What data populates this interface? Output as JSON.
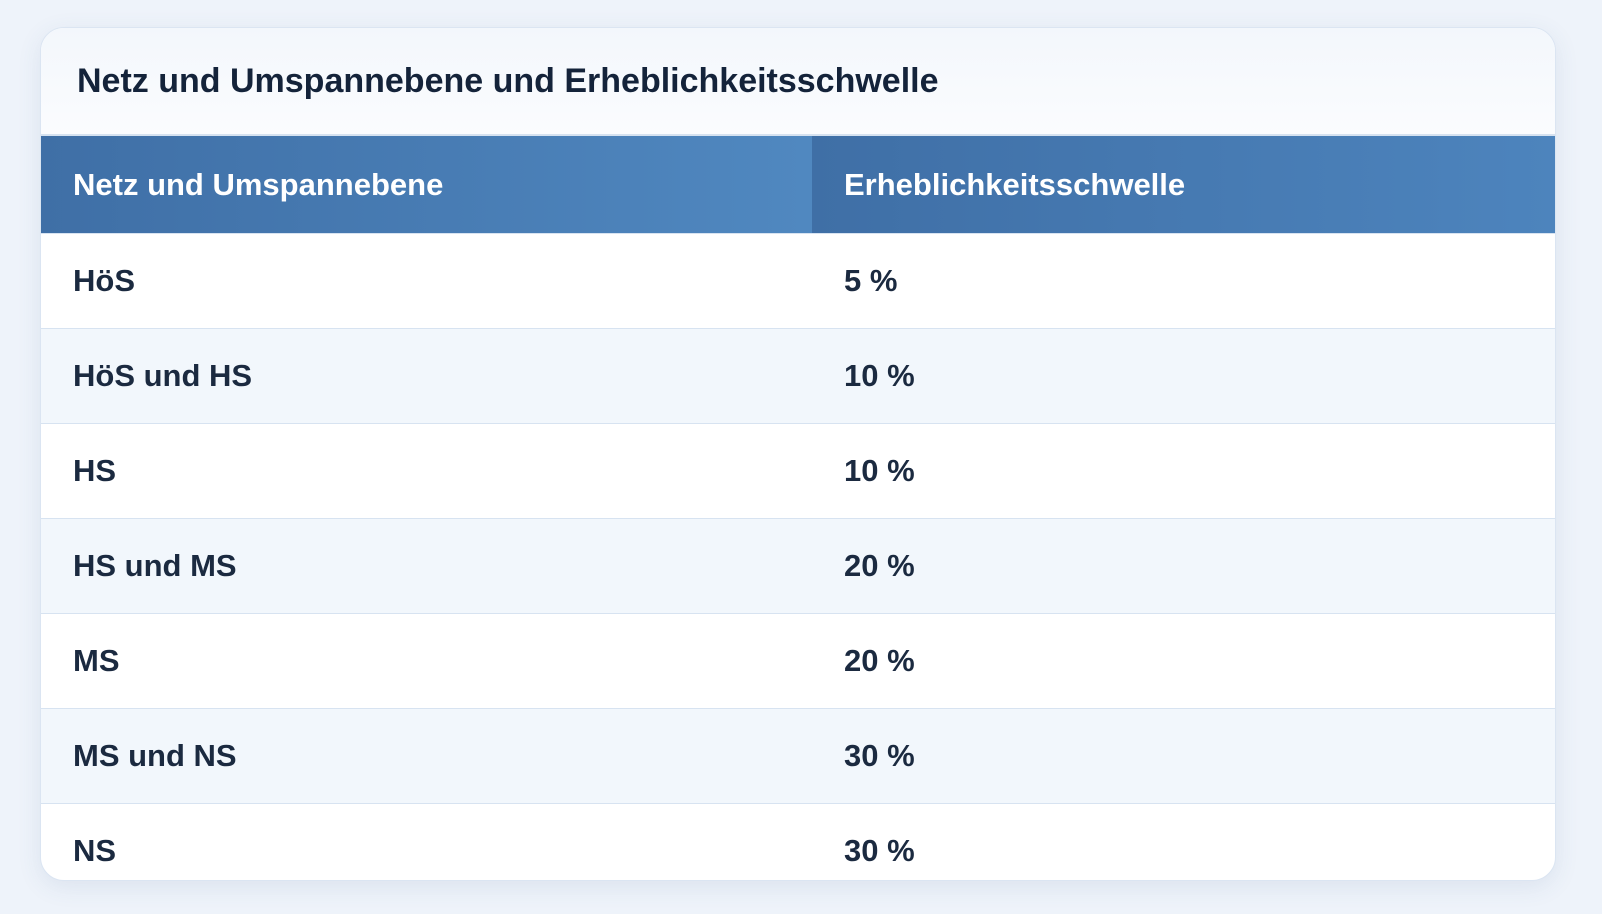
{
  "header": {
    "title": "Netz und Umspannebene und Erheblichkeitsschwelle"
  },
  "table": {
    "columns": [
      "Netz und Umspannebene",
      "Erheblichkeitsschwelle"
    ],
    "rows": [
      [
        "HöS",
        "5 %"
      ],
      [
        "HöS und HS",
        "10 %"
      ],
      [
        "HS",
        "10 %"
      ],
      [
        "HS und MS",
        "20 %"
      ],
      [
        "MS",
        "20 %"
      ],
      [
        "MS und NS",
        "30 %"
      ],
      [
        "NS",
        "30 %"
      ]
    ]
  }
}
